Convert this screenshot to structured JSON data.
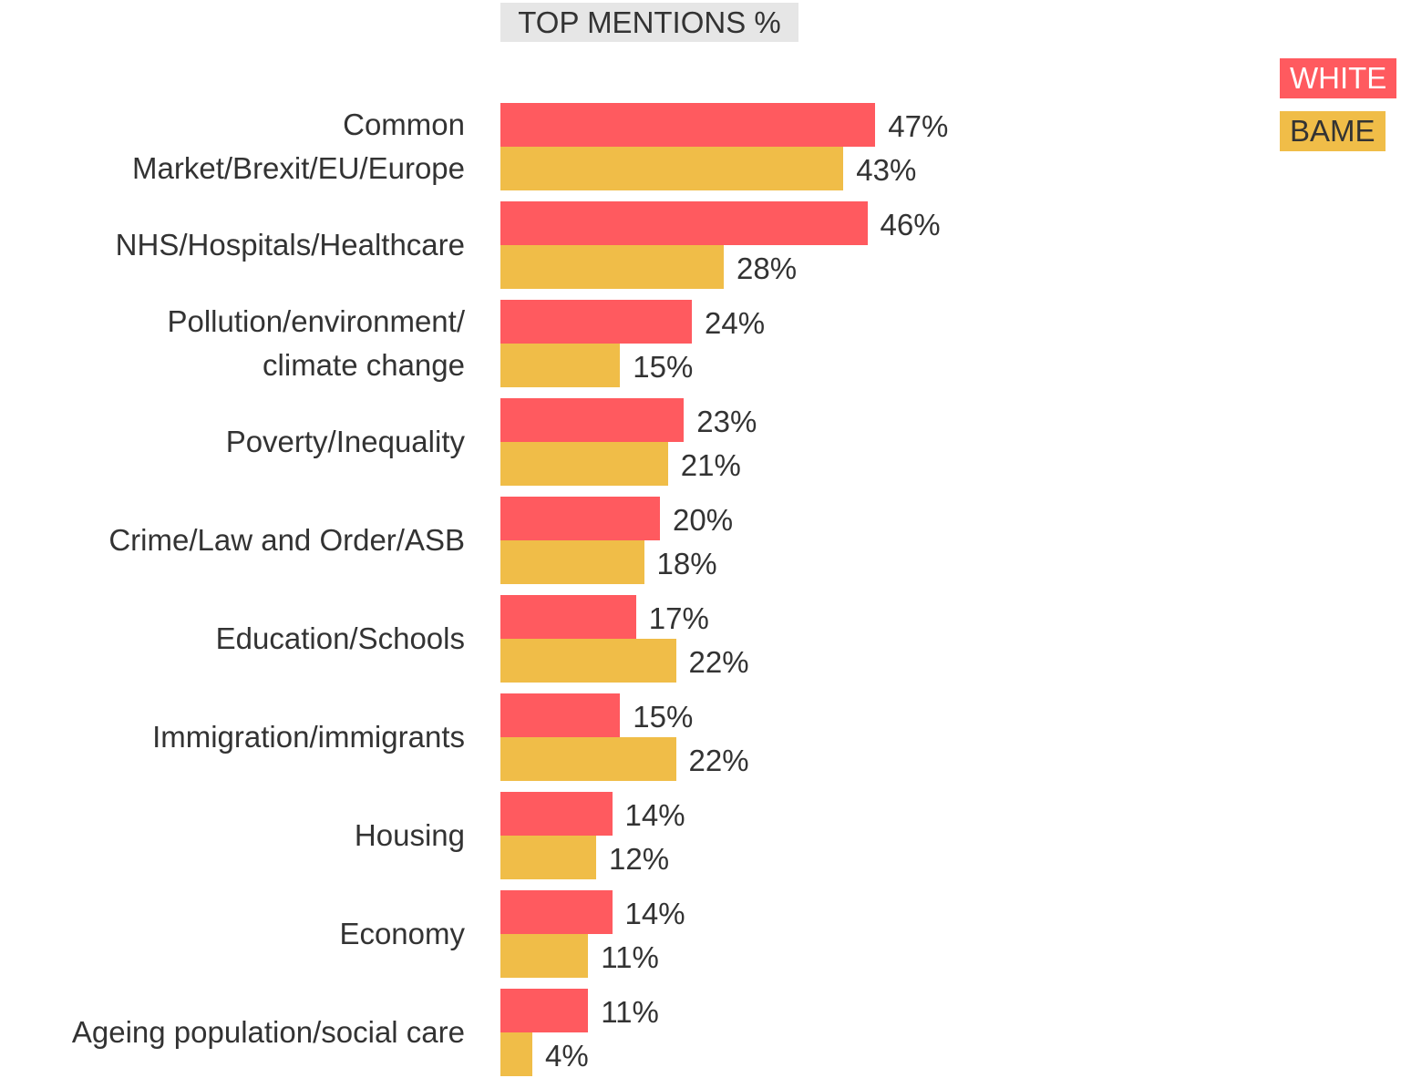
{
  "chart_data": {
    "type": "bar",
    "orientation": "horizontal",
    "title": "TOP MENTIONS %",
    "categories": [
      "Common\nMarket/Brexit/EU/Europe",
      "NHS/Hospitals/Healthcare",
      "Pollution/environment/\nclimate change",
      "Poverty/Inequality",
      "Crime/Law and Order/ASB",
      "Education/Schools",
      "Immigration/immigrants",
      "Housing",
      "Economy",
      "Ageing population/social care"
    ],
    "series": [
      {
        "name": "WHITE",
        "color": "#ff5a5f",
        "values": [
          47,
          46,
          24,
          23,
          20,
          17,
          15,
          14,
          14,
          11
        ],
        "value_labels": [
          "47%",
          "46%",
          "24%",
          "23%",
          "20%",
          "17%",
          "15%",
          "14%",
          "14%",
          "11%"
        ]
      },
      {
        "name": "BAME",
        "color": "#f0bd48",
        "values": [
          43,
          28,
          15,
          21,
          18,
          22,
          22,
          12,
          11,
          4
        ],
        "value_labels": [
          "43%",
          "28%",
          "15%",
          "21%",
          "18%",
          "22%",
          "22%",
          "12%",
          "11%",
          "4%"
        ]
      }
    ],
    "legend": "top-right"
  }
}
